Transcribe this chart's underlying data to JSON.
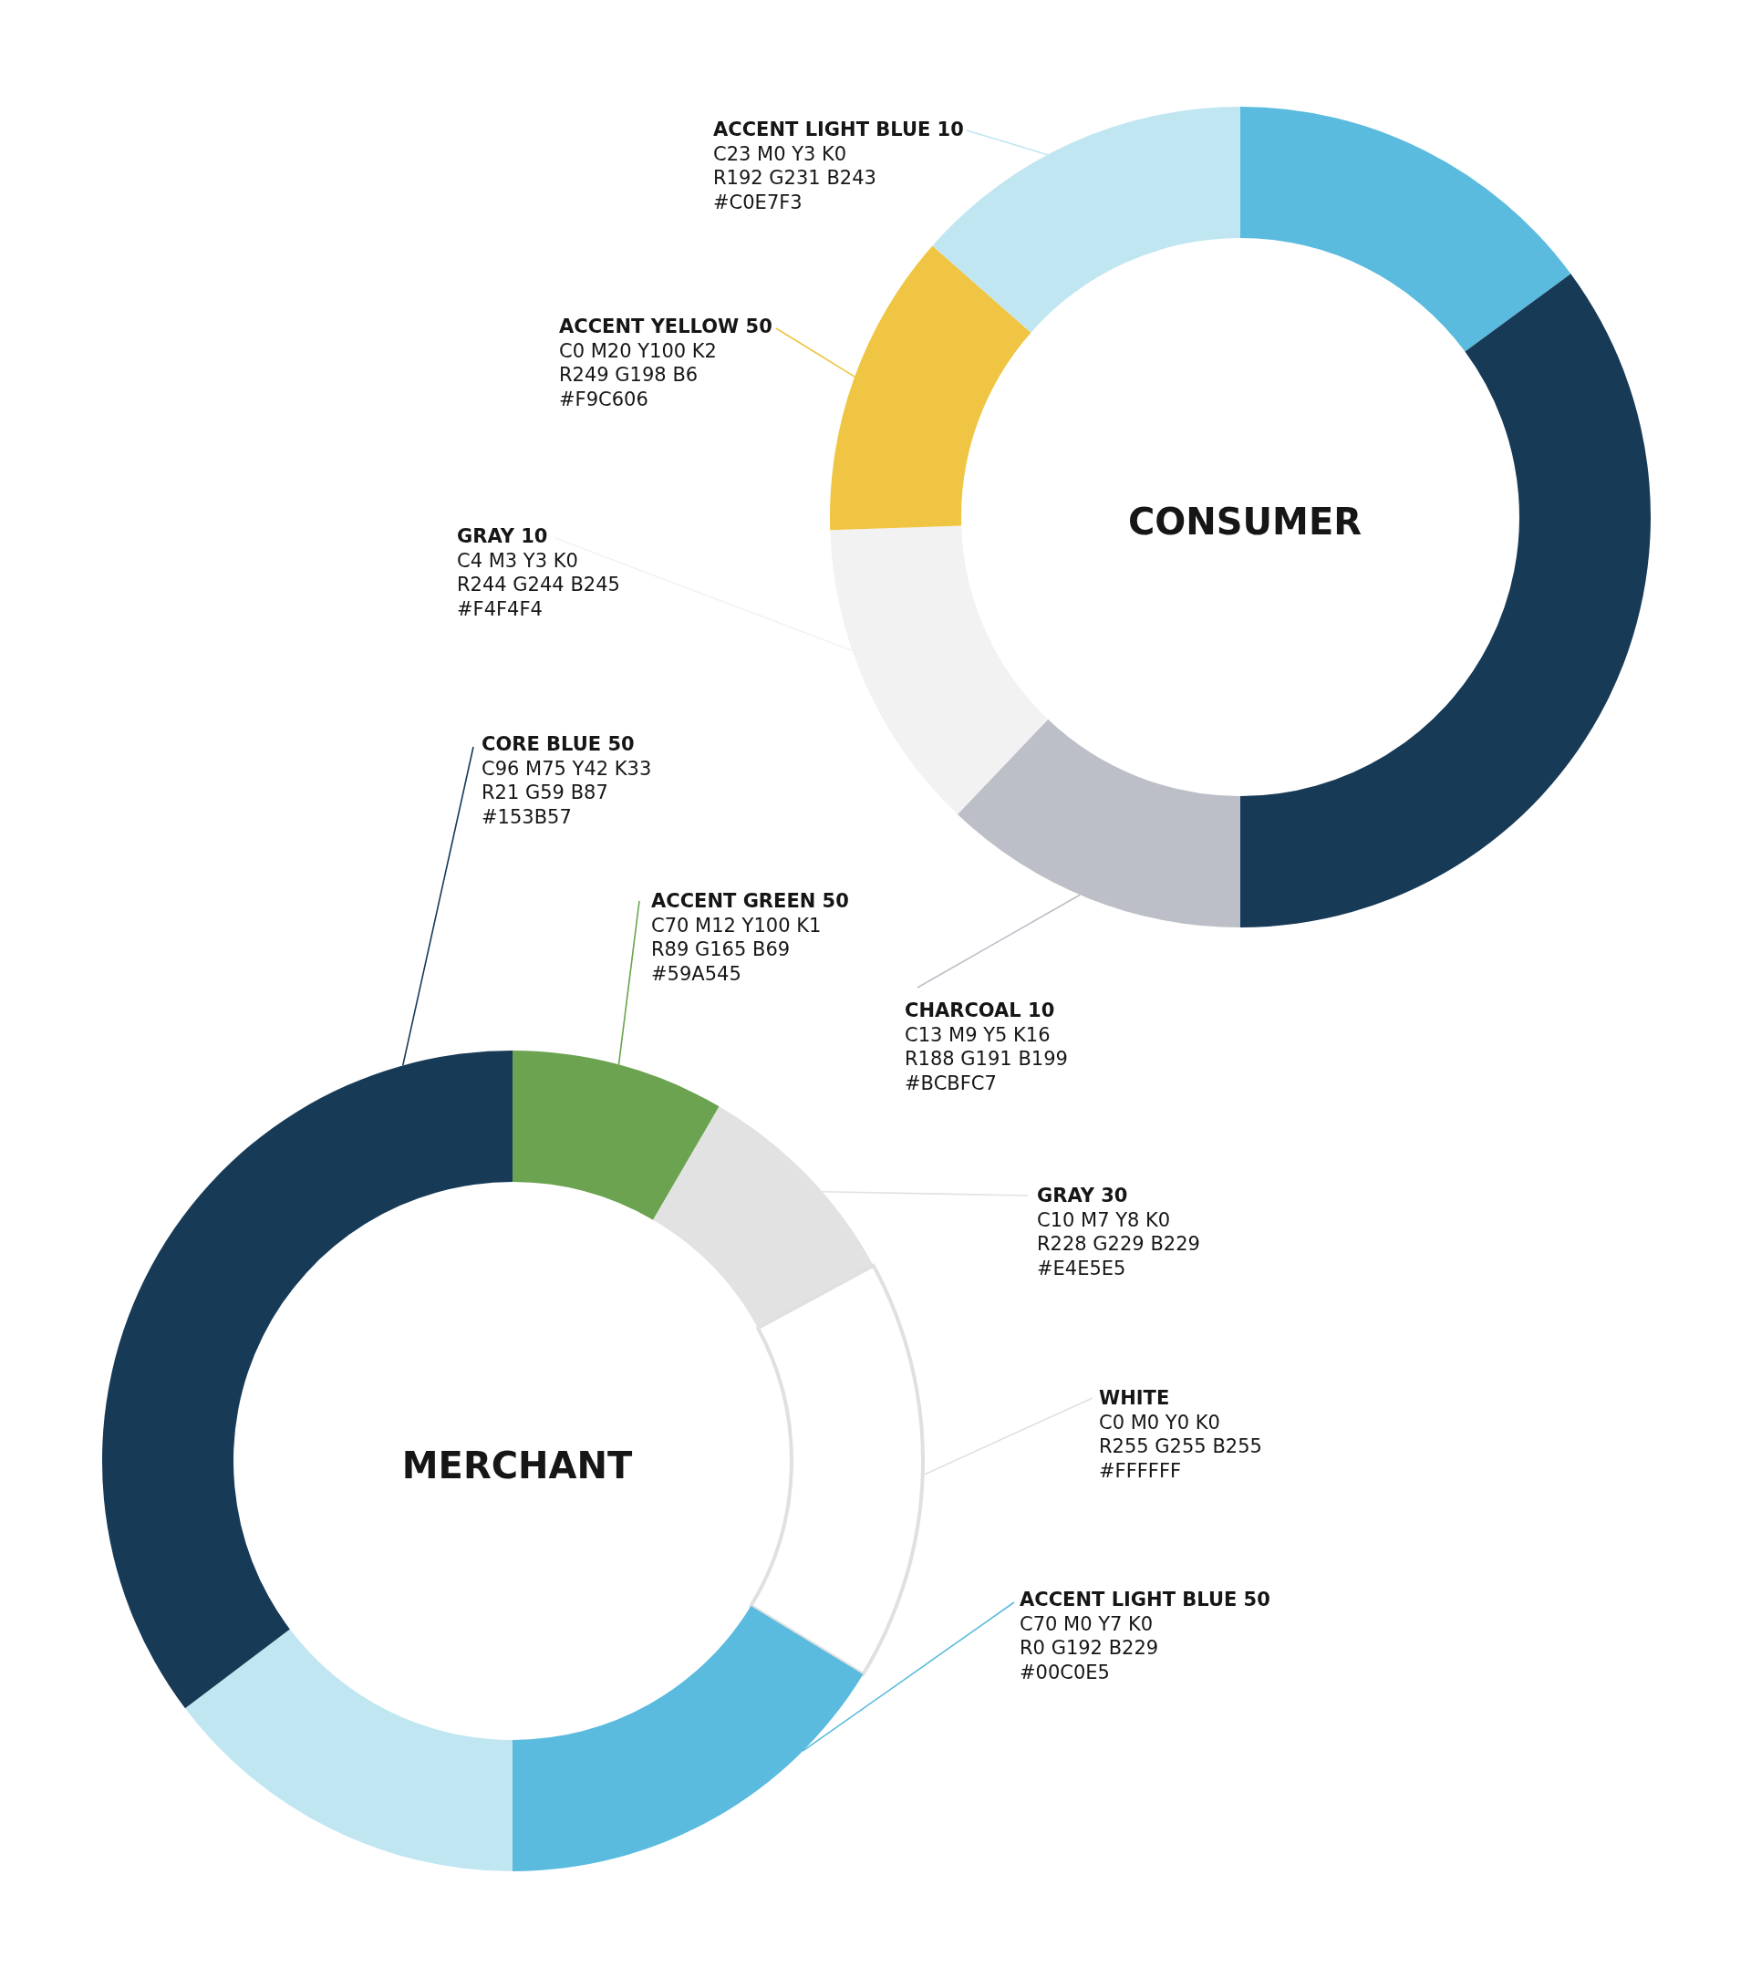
{
  "chart_data": [
    {
      "type": "donut",
      "title": "CONSUMER",
      "categories": [
        null,
        null,
        "CHARCOAL 10\nC13 M9 Y5 K16\nR188 G191 B199\n#BCBFC7",
        "GRAY 10\nC4 M3 Y3 K0\nR244 G244 B245\n#F4F4F4",
        "ACCENT YELLOW 50\nC0 M20 Y100 K2\nR249 G198 B6\n#F9C606",
        "ACCENT LIGHT BLUE 10\nC23 M0 Y3 K0\nR192 G231 B243\n#C0E7F3"
      ],
      "values": [
        14.9,
        35.1,
        12.1,
        12.4,
        12.0,
        13.5
      ],
      "colors": [
        "#5abbdf",
        "#173a57",
        "#bcbfc7",
        "#f2f2f2",
        "#f0c543",
        "#c0e6f2"
      ]
    },
    {
      "type": "donut",
      "title": "MERCHANT",
      "categories": [
        "ACCENT GREEN 50\nC70 M12 Y100 K1\nR89 G165 B69\n#59A545",
        "GRAY 30\nC10 M7 Y8 K0\nR228 G229 B229\n#E4E5E5",
        "WHITE\nC0 M0 Y0 K0\nR255 G255 B255\n#FFFFFF",
        "ACCENT LIGHT BLUE 50\nC70 M0 Y7 K0\nR0 G192 B229\n#00C0E5",
        null,
        "CORE BLUE 50\nC96 M75 Y42 K33\nR21 G59 B87\n#153B57"
      ],
      "values": [
        8.4,
        8.7,
        16.6,
        16.3,
        14.7,
        35.3
      ],
      "colors": [
        "#6ba350",
        "#e1e2e1",
        "#ffffff",
        "#5abbdf",
        "#c0e6f2",
        "#173a57"
      ]
    }
  ]
}
